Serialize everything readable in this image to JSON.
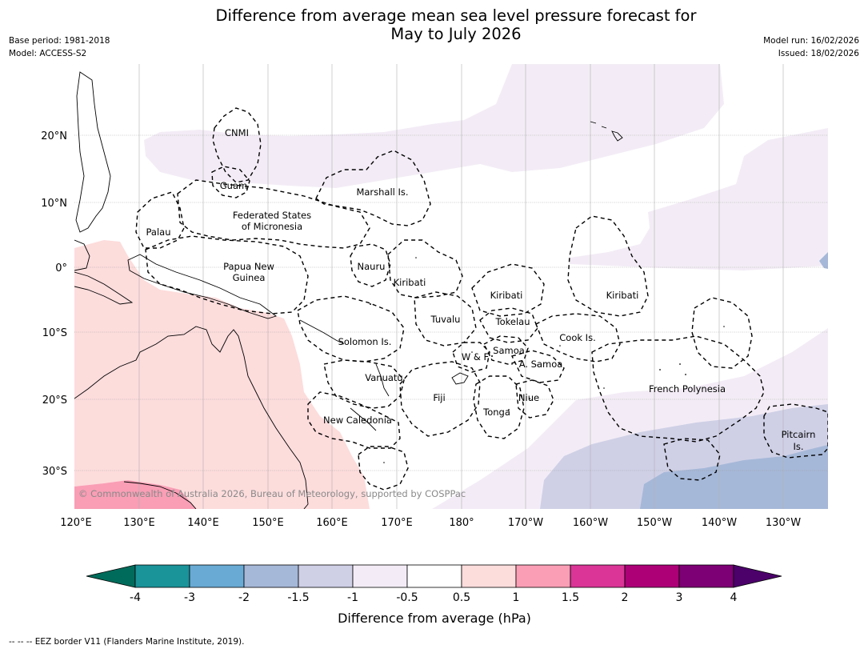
{
  "title": {
    "line1": "Difference from average mean sea level pressure forecast for",
    "line2": "May to July 2026"
  },
  "meta": {
    "base_period": "Base period: 1981-2018",
    "model": "Model: ACCESS-S2",
    "model_run": "Model run: 16/02/2026",
    "issued": "Issued: 18/02/2026"
  },
  "map": {
    "lat_labels": [
      "20°N",
      "10°N",
      "0°",
      "10°S",
      "20°S",
      "30°S"
    ],
    "lon_labels": [
      "120°E",
      "130°E",
      "140°E",
      "150°E",
      "160°E",
      "170°E",
      "180°",
      "170°W",
      "160°W",
      "150°W",
      "140°W",
      "130°W"
    ],
    "copyright": "© Commonwealth of Australia 2026, Bureau of Meteorology, supported by COSPPac",
    "places": {
      "cnmi": "CNMI",
      "guam": "Guam",
      "marshall": "Marshall Is.",
      "fsm1": "Federated States",
      "fsm2": "of Micronesia",
      "palau": "Palau",
      "png1": "Papua New",
      "png2": "Guinea",
      "nauru": "Nauru",
      "kiribati_w": "Kiribati",
      "kiribati_c": "Kiribati",
      "kiribati_e": "Kiribati",
      "tuvalu": "Tuvalu",
      "tokelau": "Tokelau",
      "cook": "Cook Is.",
      "solomon": "Solomon Is.",
      "samoa": "Samoa",
      "wf": "W & F",
      "asamoa": "A. Samoa",
      "vanuatu": "Vanuatu",
      "fiji": "Fiji",
      "niue": "Niue",
      "tonga": "Tonga",
      "frpoly": "French Polynesia",
      "newcal": "New Caledonia",
      "pitcairn1": "Pitcairn",
      "pitcairn2": "Is."
    }
  },
  "colorbar": {
    "ticks": [
      "-4",
      "-3",
      "-2",
      "-1.5",
      "-1",
      "-0.5",
      "0.5",
      "1",
      "1.5",
      "2",
      "3",
      "4"
    ],
    "label": "Difference from average (hPa)",
    "colors": {
      "under": "#006b5a",
      "bins": [
        "#1a9399",
        "#68aad3",
        "#a6b8d8",
        "#cfd0e6",
        "#f3ecf6",
        "#ffffff",
        "#fddcdc",
        "#f99eb5",
        "#da3597",
        "#ad0077",
        "#7d0074"
      ],
      "over": "#4b006a"
    }
  },
  "footer": "--  --  -- EEZ border V11 (Flanders Marine Institute, 2019)."
}
